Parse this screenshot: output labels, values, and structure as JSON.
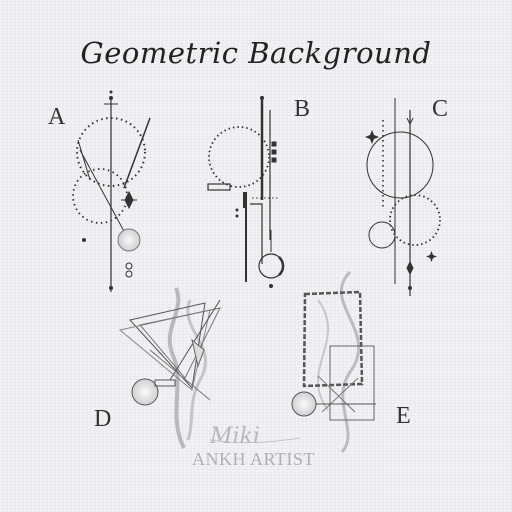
{
  "title": "Geometric Background",
  "designs": [
    {
      "label": "A"
    },
    {
      "label": "B"
    },
    {
      "label": "C"
    },
    {
      "label": "D"
    },
    {
      "label": "E"
    }
  ],
  "watermark": {
    "signature": "Miki",
    "brand": "ANKH ARTIST"
  }
}
